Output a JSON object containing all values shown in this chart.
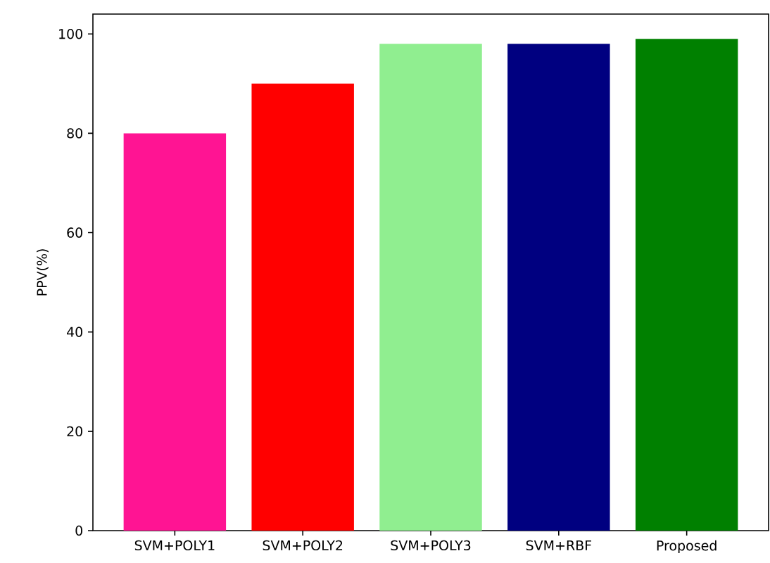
{
  "chart_data": {
    "type": "bar",
    "ylabel": "PPV(%)",
    "categories": [
      "SVM+POLY1",
      "SVM+POLY2",
      "SVM+POLY3",
      "SVM+RBF",
      "Proposed"
    ],
    "values": [
      80,
      90,
      98,
      98,
      99
    ],
    "colors": [
      "#ff1493",
      "#ff0000",
      "#90ee90",
      "#000080",
      "#008000"
    ],
    "ylim": [
      0,
      104
    ],
    "yticks": [
      0,
      20,
      40,
      60,
      80,
      100
    ]
  }
}
